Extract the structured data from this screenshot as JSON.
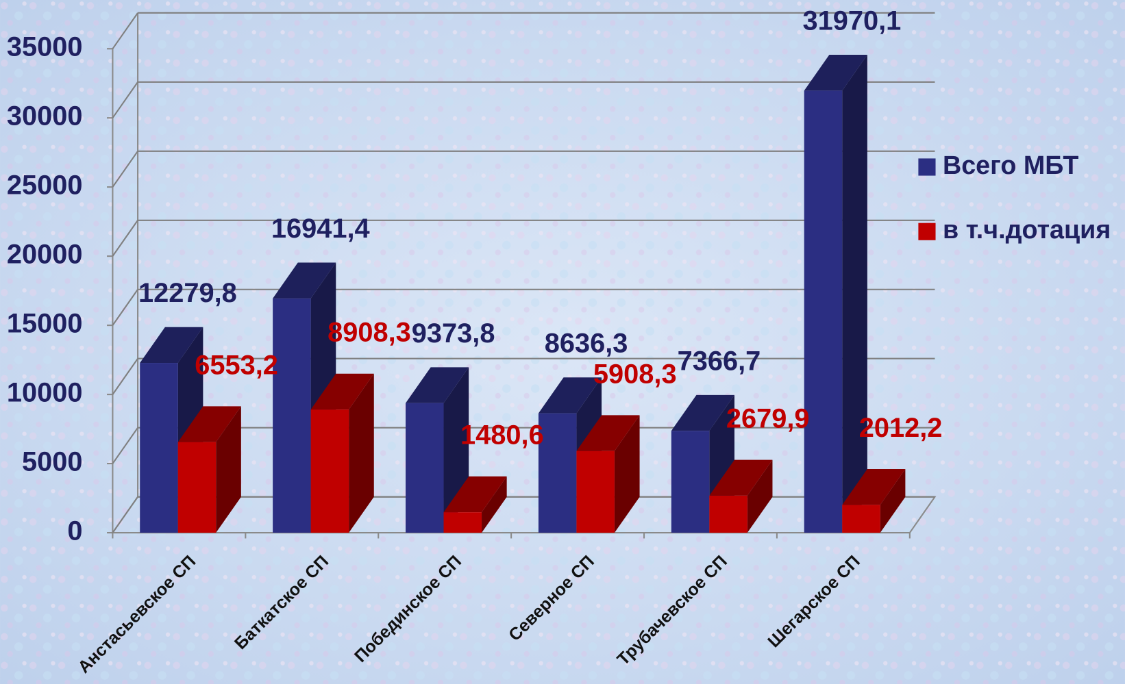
{
  "chart_data": {
    "type": "bar3d",
    "categories": [
      "Анстасьевское СП",
      "Баткатское СП",
      "Побединское СП",
      "Северное СП",
      "Трубачевское СП",
      "Шегарское СП"
    ],
    "series": [
      {
        "name": "Всего МБТ",
        "color": "#2b2e82",
        "values": [
          12279.8,
          16941.4,
          9373.8,
          8636.3,
          7366.7,
          31970.1
        ],
        "value_labels": [
          "12279,8",
          "16941,4",
          "9373,8",
          "8636,3",
          "7366,7",
          "31970,1"
        ]
      },
      {
        "name": "в т.ч.дотация",
        "color": "#c00000",
        "values": [
          6553.2,
          8908.3,
          1480.6,
          5908.3,
          2679.9,
          2012.2
        ],
        "value_labels": [
          "6553,2",
          "8908,3",
          "1480,6",
          "5908,3",
          "2679,9",
          "2012,2"
        ]
      }
    ],
    "ylim": [
      0,
      35000
    ],
    "yticks": [
      0,
      5000,
      10000,
      15000,
      20000,
      25000,
      30000,
      35000
    ],
    "grid": true
  }
}
